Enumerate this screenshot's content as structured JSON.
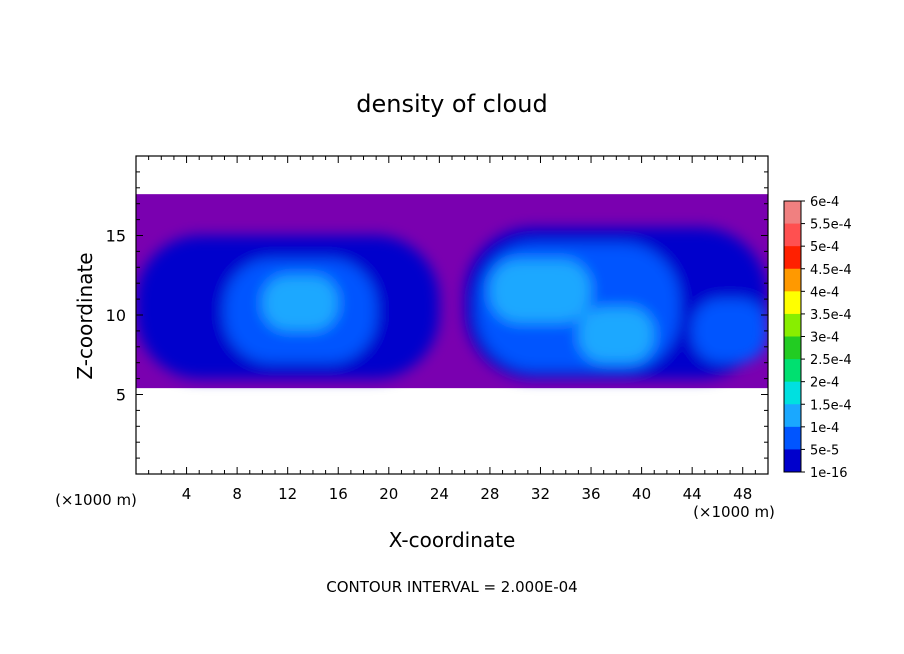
{
  "chart_data": {
    "type": "heatmap",
    "title": "density of cloud",
    "xlabel": "X-coordinate",
    "ylabel": "Z-coordinate",
    "x_unit": "(×1000 m)",
    "x_unit_right": "(×1000 m)",
    "xlim": [
      0,
      50
    ],
    "ylim": [
      0,
      20
    ],
    "x_ticks": [
      4,
      8,
      12,
      16,
      20,
      24,
      28,
      32,
      36,
      40,
      44,
      48
    ],
    "y_ticks": [
      5,
      10,
      15
    ],
    "footer": "CONTOUR INTERVAL = 2.000E-04",
    "colorbar": {
      "labels": [
        "6e-4",
        "5.5e-4",
        "5e-4",
        "4.5e-4",
        "4e-4",
        "3.5e-4",
        "3e-4",
        "2.5e-4",
        "2e-4",
        "1.5e-4",
        "1e-4",
        "5e-5",
        "1e-16"
      ],
      "colors": [
        "#f08080",
        "#ff5050",
        "#ff2000",
        "#ff9900",
        "#ffff00",
        "#88ee00",
        "#22cc22",
        "#00e070",
        "#00e0e0",
        "#1aa8ff",
        "#0055ff",
        "#0000cc",
        "#7a00b0"
      ]
    },
    "regions": [
      {
        "x": [
          0,
          50
        ],
        "y": [
          5.4,
          17.6
        ],
        "level": "1e-16"
      },
      {
        "x": [
          0,
          24
        ],
        "y": [
          6.0,
          15.0
        ],
        "level": "5e-5"
      },
      {
        "x": [
          26,
          50
        ],
        "y": [
          6.0,
          15.5
        ],
        "level": "5e-5"
      },
      {
        "x": [
          7,
          19
        ],
        "y": [
          7.0,
          13.5
        ],
        "level": "1e-4"
      },
      {
        "x": [
          27,
          43
        ],
        "y": [
          6.5,
          14.5
        ],
        "level": "1e-4"
      },
      {
        "x": [
          10,
          16
        ],
        "y": [
          9.0,
          12.5
        ],
        "level": "1.5e-4"
      },
      {
        "x": [
          28,
          36
        ],
        "y": [
          9.5,
          13.5
        ],
        "level": "1.5e-4"
      },
      {
        "x": [
          35,
          41
        ],
        "y": [
          7.0,
          10.5
        ],
        "level": "1.5e-4"
      },
      {
        "x": [
          44,
          50
        ],
        "y": [
          7.0,
          11.0
        ],
        "level": "1e-4"
      }
    ]
  }
}
